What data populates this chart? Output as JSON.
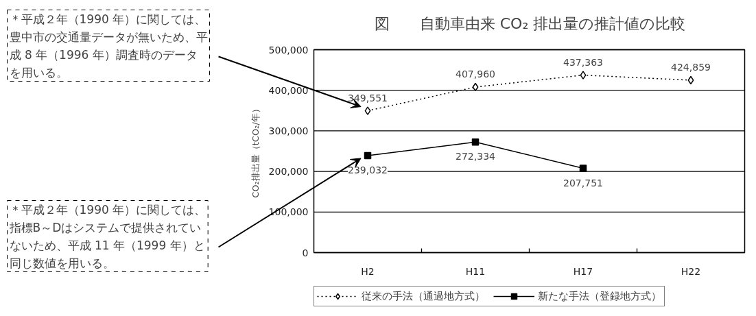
{
  "chart_data": {
    "type": "line",
    "title": "図　　自動車由来 CO₂ 排出量の推計値の比較",
    "ylabel": "CO₂排出量（tCO₂/年）",
    "categories": [
      "H2",
      "H11",
      "H17",
      "H22"
    ],
    "series": [
      {
        "name": "従来の手法（通過地方式）",
        "color": "#000000",
        "values": [
          349551,
          407960,
          437363,
          424859
        ],
        "value_labels": [
          "349,551",
          "407,960",
          "437,363",
          "424,859"
        ],
        "marker": "diamond",
        "line_style": "dotted"
      },
      {
        "name": "新たな手法（登録地方式）",
        "color": "#000000",
        "values": [
          239032,
          272334,
          207751,
          null
        ],
        "value_labels": [
          "239,032",
          "272,334",
          "207,751",
          null
        ],
        "marker": "square",
        "line_style": "solid"
      }
    ],
    "ylim": [
      0,
      500000
    ],
    "yticks": [
      0,
      {
        "value": 100000,
        "label": "100,000"
      },
      {
        "value": 200000,
        "label": "200,000"
      },
      {
        "value": 300000,
        "label": "300,000"
      },
      {
        "value": 400000,
        "label": "400,000"
      },
      {
        "value": 500000,
        "label": "500,000"
      }
    ],
    "grid": "y",
    "legend": "bottom",
    "annotations": [
      "＊平成２年（1990 年）に関しては、豊中市の交通量データが無いため、平成 8 年（1996 年）調査時のデータを用いる。",
      "＊平成２年（1990 年）に関しては、指標B～Dはシステムで提供されていないため、平成 11 年（1999 年）と同じ数値を用いる。"
    ]
  }
}
